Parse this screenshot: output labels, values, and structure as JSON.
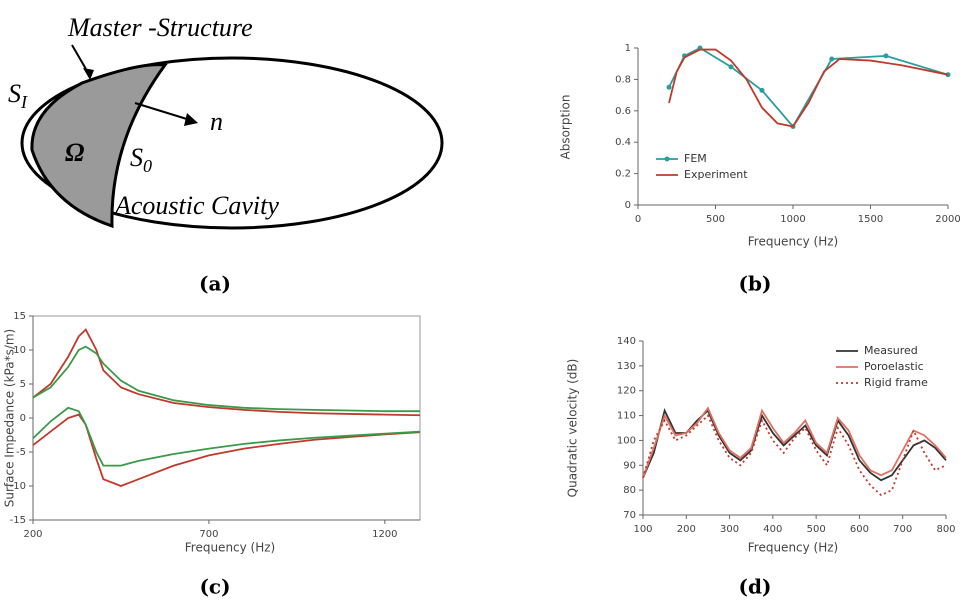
{
  "diagram": {
    "title": "Master -Structure",
    "boundary_outer": {
      "text": "S",
      "sub": "I"
    },
    "normal": "n",
    "domain": "Ω",
    "boundary_inner": {
      "text": "S",
      "sub": "0"
    },
    "cavity": "Acoustic Cavity",
    "caption": "(a)"
  },
  "chart_data": [
    {
      "type": "line",
      "caption": "(b)",
      "xlabel": "Frequency (Hz)",
      "ylabel": "Absorption",
      "xlim": [
        0,
        2000
      ],
      "xticks": [
        0,
        500,
        1000,
        1500,
        2000
      ],
      "ylim": [
        0,
        1
      ],
      "yticks": [
        0,
        0.2,
        0.4,
        0.6,
        0.8,
        1
      ],
      "legend": "lower left",
      "series": [
        {
          "name": "FEM",
          "color": "#2a9d9d",
          "markers": true,
          "x": [
            200,
            300,
            400,
            600,
            800,
            1000,
            1250,
            1600,
            2000
          ],
          "values": [
            0.75,
            0.95,
            1.0,
            0.88,
            0.73,
            0.5,
            0.93,
            0.95,
            0.83
          ]
        },
        {
          "name": "Experiment",
          "color": "#c0392b",
          "x": [
            200,
            250,
            300,
            400,
            500,
            600,
            700,
            800,
            900,
            1000,
            1100,
            1200,
            1300,
            1500,
            1700,
            2000
          ],
          "values": [
            0.65,
            0.85,
            0.94,
            0.99,
            0.99,
            0.92,
            0.8,
            0.62,
            0.52,
            0.5,
            0.65,
            0.85,
            0.93,
            0.92,
            0.89,
            0.83
          ]
        }
      ]
    },
    {
      "type": "line",
      "caption": "(c)",
      "xlabel": "Frequency (Hz)",
      "ylabel": "Surface Impedance (kPa*s/m)",
      "xlim": [
        200,
        1300
      ],
      "xticks": [
        200,
        700,
        1200
      ],
      "ylim": [
        -15,
        15
      ],
      "yticks": [
        -15,
        -10,
        -5,
        0,
        5,
        10,
        15
      ],
      "series": [
        {
          "color": "#c0392b",
          "x": [
            200,
            250,
            300,
            330,
            350,
            380,
            400,
            450,
            500,
            600,
            700,
            800,
            900,
            1000,
            1100,
            1200,
            1300
          ],
          "values": [
            3,
            5,
            9,
            12,
            13,
            10,
            7,
            4.5,
            3.5,
            2.2,
            1.6,
            1.2,
            0.9,
            0.7,
            0.6,
            0.5,
            0.4
          ]
        },
        {
          "color": "#3a9a4a",
          "x": [
            200,
            250,
            300,
            330,
            350,
            380,
            400,
            450,
            500,
            600,
            700,
            800,
            900,
            1000,
            1100,
            1200,
            1300
          ],
          "values": [
            3,
            4.5,
            7.5,
            10,
            10.5,
            9.5,
            8,
            5.5,
            4,
            2.6,
            1.9,
            1.5,
            1.3,
            1.2,
            1.1,
            1.0,
            1.0
          ]
        },
        {
          "color": "#c0392b",
          "x": [
            200,
            250,
            300,
            330,
            350,
            380,
            400,
            450,
            500,
            600,
            700,
            800,
            900,
            1000,
            1100,
            1200,
            1300
          ],
          "values": [
            -4,
            -2,
            0,
            0.5,
            -1,
            -6,
            -9,
            -10,
            -9,
            -7,
            -5.5,
            -4.5,
            -3.8,
            -3.2,
            -2.8,
            -2.4,
            -2.1
          ]
        },
        {
          "color": "#3a9a4a",
          "x": [
            200,
            250,
            300,
            330,
            350,
            380,
            400,
            450,
            500,
            600,
            700,
            800,
            900,
            1000,
            1100,
            1200,
            1300
          ],
          "values": [
            -3,
            -0.5,
            1.5,
            1,
            -1,
            -5,
            -7,
            -7,
            -6.3,
            -5.3,
            -4.5,
            -3.8,
            -3.3,
            -2.9,
            -2.6,
            -2.3,
            -2
          ]
        }
      ]
    },
    {
      "type": "line",
      "caption": "(d)",
      "xlabel": "Frequency (Hz)",
      "ylabel": "Quadratic velocity (dB)",
      "xlim": [
        100,
        800
      ],
      "xticks": [
        100,
        200,
        300,
        400,
        500,
        600,
        700,
        800
      ],
      "ylim": [
        70,
        140
      ],
      "yticks": [
        70,
        80,
        90,
        100,
        110,
        120,
        130,
        140
      ],
      "legend": "upper right",
      "series": [
        {
          "name": "Measured",
          "color": "#333333",
          "x": [
            100,
            125,
            150,
            175,
            200,
            225,
            250,
            275,
            300,
            325,
            350,
            375,
            400,
            425,
            450,
            475,
            500,
            525,
            550,
            575,
            600,
            625,
            650,
            675,
            700,
            725,
            750,
            775,
            800
          ],
          "values": [
            85,
            95,
            112,
            103,
            103,
            108,
            112,
            102,
            95,
            92,
            96,
            110,
            103,
            98,
            102,
            106,
            98,
            94,
            108,
            102,
            92,
            87,
            84,
            86,
            92,
            98,
            100,
            97,
            92
          ]
        },
        {
          "name": "Poroelastic",
          "color": "#e07060",
          "x": [
            100,
            125,
            150,
            175,
            200,
            225,
            250,
            275,
            300,
            325,
            350,
            375,
            400,
            425,
            450,
            475,
            500,
            525,
            550,
            575,
            600,
            625,
            650,
            675,
            700,
            725,
            750,
            775,
            800
          ],
          "values": [
            85,
            97,
            110,
            102,
            103,
            107,
            113,
            103,
            96,
            93,
            97,
            112,
            105,
            99,
            103,
            108,
            99,
            95,
            109,
            104,
            94,
            88,
            86,
            88,
            96,
            104,
            102,
            98,
            93
          ]
        },
        {
          "name": "Rigid frame",
          "color": "#c0392b",
          "dash": true,
          "x": [
            100,
            125,
            150,
            175,
            200,
            225,
            250,
            275,
            300,
            325,
            350,
            375,
            400,
            425,
            450,
            475,
            500,
            525,
            550,
            575,
            600,
            625,
            650,
            675,
            700,
            725,
            750,
            775,
            800
          ],
          "values": [
            85,
            100,
            108,
            100,
            102,
            106,
            110,
            100,
            93,
            90,
            95,
            108,
            100,
            95,
            101,
            105,
            96,
            90,
            105,
            98,
            88,
            82,
            78,
            80,
            92,
            104,
            95,
            88,
            90
          ]
        }
      ]
    }
  ]
}
